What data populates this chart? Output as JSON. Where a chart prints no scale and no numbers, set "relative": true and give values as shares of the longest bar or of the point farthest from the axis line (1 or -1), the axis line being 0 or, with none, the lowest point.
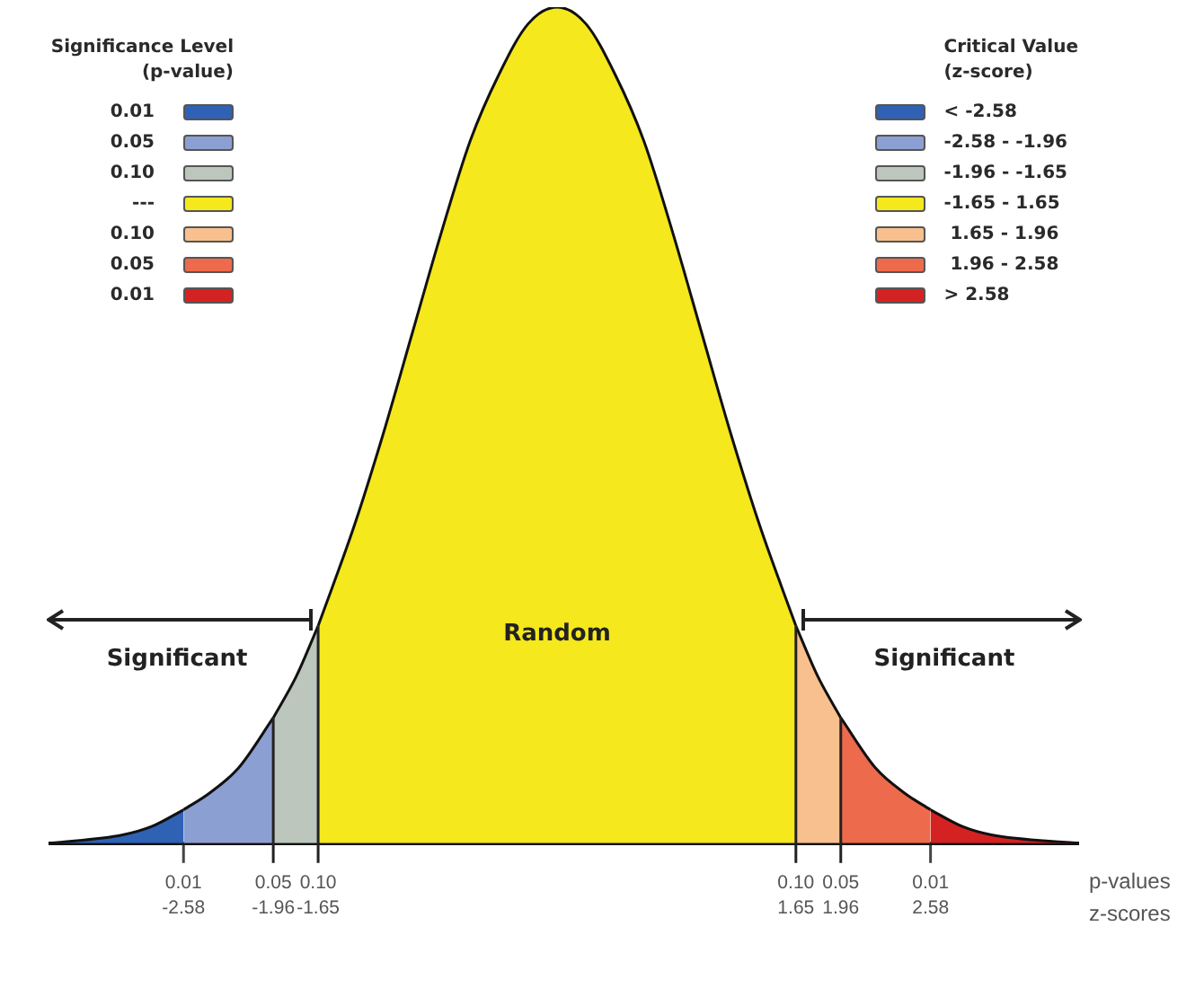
{
  "chart_data": {
    "type": "area",
    "relative": true,
    "marker": "none",
    "legend": "top right",
    "legend_title": "Critical Value\n(z-score)",
    "xlabel": "z-scores",
    "xlim": [
      -3.5,
      3.6
    ],
    "xticks": [
      -2.58,
      -1.96,
      -1.65,
      1.65,
      1.96,
      2.58
    ],
    "ref_lines": [
      {
        "axis": "x",
        "value": -1.96
      },
      {
        "axis": "x",
        "value": -1.65
      },
      {
        "axis": "x",
        "value": 1.65
      },
      {
        "axis": "x",
        "value": 1.96
      }
    ],
    "series": [
      {
        "name": "< -2.58",
        "color": "#2f62b5",
        "x": [
          -3.5,
          -3.0,
          -2.8,
          -2.58
        ],
        "values": [
          0.0,
          0.01,
          0.02,
          0.04
        ]
      },
      {
        "name": "-2.58 - -1.96",
        "color": "#8c9fd2",
        "x": [
          -2.58,
          -2.4,
          -2.2,
          -1.96
        ],
        "values": [
          0.04,
          0.06,
          0.09,
          0.15
        ]
      },
      {
        "name": "-1.96 - -1.65",
        "color": "#bcc6bc",
        "x": [
          -1.96,
          -1.8,
          -1.65
        ],
        "values": [
          0.15,
          0.2,
          0.26
        ]
      },
      {
        "name": "-1.65 - 1.65",
        "color": "#f5e81c",
        "x": [
          -1.65,
          -1.4,
          -1.2,
          -1,
          -0.8,
          -0.6,
          -0.4,
          -0.2,
          0,
          0.2,
          0.4,
          0.6,
          0.8,
          1,
          1.2,
          1.4,
          1.65
        ],
        "values": [
          0.26,
          0.38,
          0.49,
          0.61,
          0.73,
          0.84,
          0.92,
          0.98,
          1,
          0.98,
          0.92,
          0.84,
          0.73,
          0.61,
          0.49,
          0.38,
          0.26
        ]
      },
      {
        "name": " 1.65 - 1.96",
        "color": "#f8c08e",
        "x": [
          1.65,
          1.8,
          1.96
        ],
        "values": [
          0.26,
          0.2,
          0.15
        ]
      },
      {
        "name": " 1.96 - 2.58",
        "color": "#ee6a4c",
        "x": [
          1.96,
          2.2,
          2.4,
          2.58
        ],
        "values": [
          0.15,
          0.09,
          0.06,
          0.04
        ]
      },
      {
        "name": "> 2.58",
        "color": "#d42222",
        "x": [
          2.58,
          2.8,
          3.0,
          3.6
        ],
        "values": [
          0.04,
          0.02,
          0.01,
          0.0
        ]
      }
    ],
    "annotations": [
      "Significance Level\n(p-value)",
      "0.01",
      "0.05",
      "0.10",
      "---",
      "0.10",
      "0.05",
      "0.01",
      "Significant",
      "Random",
      "Significant",
      "0.01",
      "0.05",
      "0.10",
      "0.10",
      "0.05",
      "0.01",
      "p-values"
    ]
  }
}
